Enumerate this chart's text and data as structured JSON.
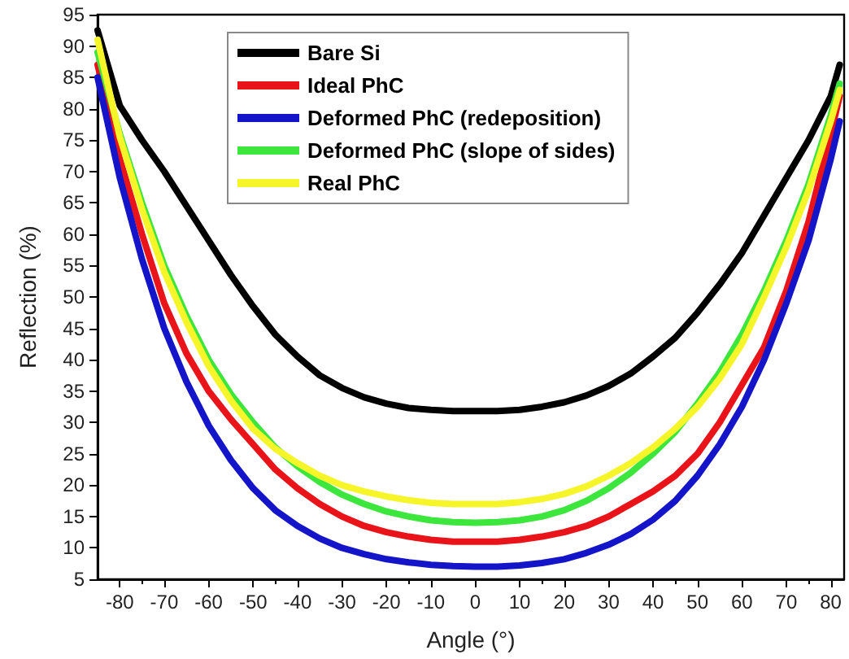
{
  "chart_data": {
    "type": "line",
    "xlabel": "Angle (°)",
    "ylabel": "Reflection (%)",
    "x": [
      -85,
      -80,
      -75,
      -70,
      -65,
      -60,
      -55,
      -50,
      -45,
      -40,
      -35,
      -30,
      -25,
      -20,
      -15,
      -10,
      -5,
      0,
      5,
      10,
      15,
      20,
      25,
      30,
      35,
      40,
      45,
      50,
      55,
      60,
      65,
      70,
      75,
      80,
      82
    ],
    "series": [
      {
        "name": "Bare Si",
        "color": "#000000",
        "values": [
          92.5,
          80.5,
          75,
          70,
          64.5,
          59,
          53.5,
          48.5,
          44,
          40.5,
          37.5,
          35.5,
          34,
          33,
          32.3,
          32,
          31.8,
          31.8,
          31.8,
          32,
          32.5,
          33.2,
          34.3,
          35.8,
          37.8,
          40.5,
          43.5,
          47.5,
          52,
          57,
          63,
          69,
          75,
          82,
          87
        ]
      },
      {
        "name": "Ideal PhC",
        "color": "#e8141a",
        "values": [
          87,
          72,
          60,
          49,
          41,
          35,
          30.5,
          26.5,
          22.5,
          19.5,
          17,
          15,
          13.5,
          12.5,
          11.8,
          11.3,
          11,
          11,
          11,
          11.3,
          11.8,
          12.5,
          13.5,
          15,
          17,
          19,
          21.5,
          25,
          30,
          36,
          42,
          51,
          62,
          76,
          82
        ]
      },
      {
        "name": "Deformed PhC (redeposition)",
        "color": "#1414c8",
        "values": [
          85,
          69,
          56,
          45,
          36.5,
          29.5,
          24,
          19.5,
          16,
          13.5,
          11.5,
          10,
          9,
          8.2,
          7.7,
          7.3,
          7.1,
          7,
          7,
          7.2,
          7.6,
          8.2,
          9.2,
          10.5,
          12.2,
          14.5,
          17.5,
          21.5,
          26.5,
          32.5,
          40,
          49,
          59,
          72,
          78
        ]
      },
      {
        "name": "Deformed PhC (slope of sides)",
        "color": "#3ce63c",
        "values": [
          89,
          76,
          65,
          55,
          47,
          40,
          34.5,
          30,
          26,
          23,
          20.5,
          18.5,
          17,
          15.8,
          15,
          14.4,
          14.1,
          14,
          14.1,
          14.4,
          15,
          16,
          17.5,
          19.5,
          22,
          25,
          28.5,
          33,
          38,
          44,
          51,
          59,
          68,
          79,
          84
        ]
      },
      {
        "name": "Real PhC",
        "color": "#f5f52a",
        "values": [
          91,
          75.5,
          64,
          54,
          46,
          39,
          33.5,
          29,
          25.8,
          23.5,
          21.5,
          20,
          19,
          18.2,
          17.6,
          17.2,
          17,
          17,
          17,
          17.3,
          17.8,
          18.6,
          19.8,
          21.5,
          23.5,
          26,
          29,
          32.5,
          37,
          42.5,
          50,
          58,
          67,
          78,
          83
        ]
      }
    ],
    "xlim": [
      -85,
      83
    ],
    "xticks": [
      -80,
      -70,
      -60,
      -50,
      -40,
      -30,
      -20,
      -10,
      0,
      10,
      20,
      30,
      40,
      50,
      60,
      70,
      80
    ],
    "ylim": [
      5,
      95
    ],
    "yticks": [
      5,
      10,
      15,
      20,
      25,
      30,
      35,
      40,
      45,
      50,
      55,
      60,
      65,
      70,
      75,
      80,
      85,
      90,
      95
    ],
    "legend": "top left",
    "grid": false,
    "marker": "none",
    "line_style": "solid"
  }
}
